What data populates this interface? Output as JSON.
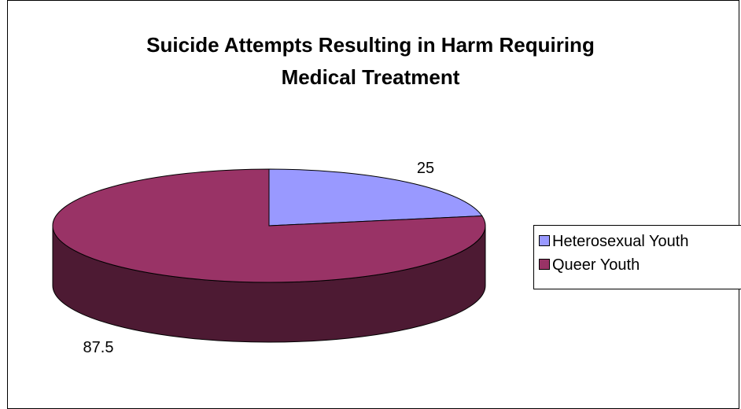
{
  "chart_data": {
    "type": "pie",
    "title_lines": [
      "Suicide Attempts Resulting in Harm Requiring",
      "Medical Treatment"
    ],
    "slices": [
      {
        "name": "Heterosexual Youth",
        "value": 25,
        "label": "25",
        "color": "#9999ff",
        "side_color": "#4c4c80"
      },
      {
        "name": "Queer Youth",
        "value": 87.5,
        "label": "87.5",
        "color": "#993366",
        "side_color": "#4d1a33"
      }
    ],
    "style": "3d",
    "legend_position": "right"
  }
}
